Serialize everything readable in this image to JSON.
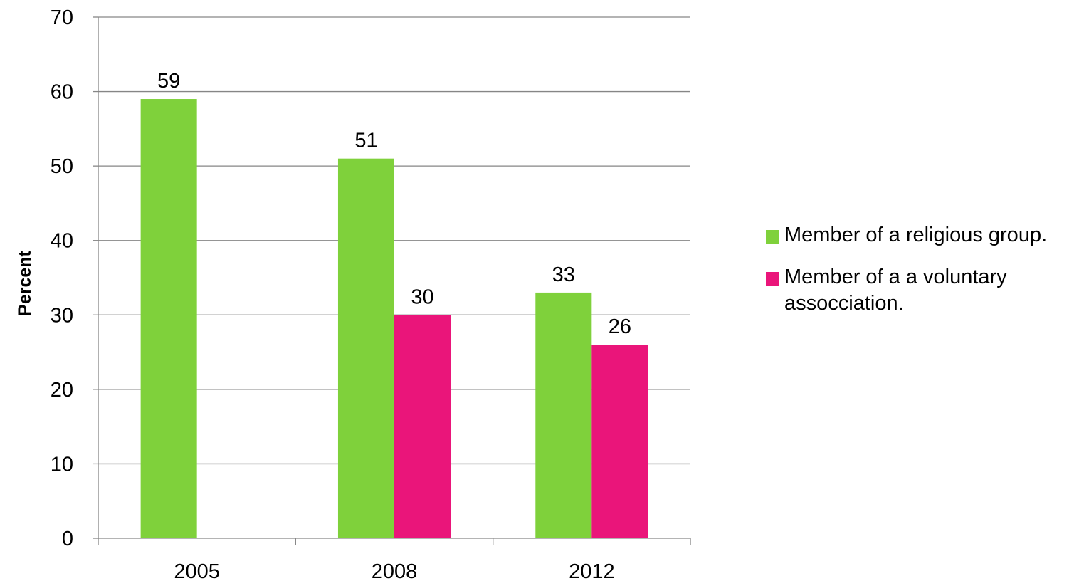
{
  "chart_data": {
    "type": "bar",
    "categories": [
      "2005",
      "2008",
      "2012"
    ],
    "series": [
      {
        "name": "Member of a religious group.",
        "color": "#7fd13b",
        "values": [
          59,
          51,
          33
        ]
      },
      {
        "name": "Member of a a voluntary assocciation.",
        "color": "#ea157a",
        "values": [
          null,
          30,
          26
        ]
      }
    ],
    "title": "",
    "xlabel": "",
    "ylabel": "Percent",
    "ylim": [
      0,
      70
    ],
    "yticks": [
      0,
      10,
      20,
      30,
      40,
      50,
      60,
      70
    ],
    "grid": true,
    "legend_position": "right"
  }
}
